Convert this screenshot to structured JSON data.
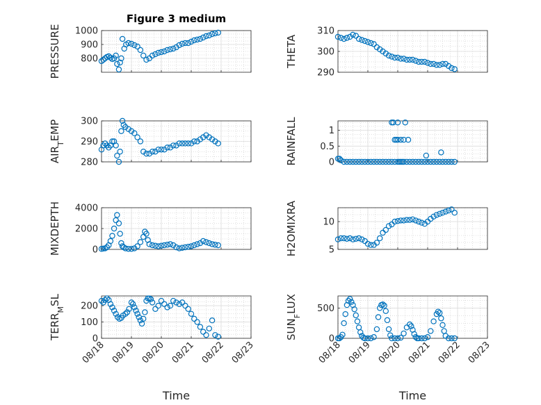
{
  "figure": {
    "marker_color": "#0072BD",
    "axis_color": "#262626",
    "grid_color": "#bfbfbf"
  },
  "chart_data": [
    {
      "type": "scatter",
      "title": "Figure 3 medium",
      "ylabel": "PRESSURE",
      "ylabel_sub": "",
      "ylabel_tail": "",
      "xlabel": "",
      "xlim": [
        0,
        5
      ],
      "ylim": [
        700,
        1000
      ],
      "yticks": [
        800,
        900,
        1000
      ],
      "show_xtick_labels": false,
      "x": [
        0.0,
        0.06,
        0.12,
        0.18,
        0.24,
        0.3,
        0.36,
        0.42,
        0.48,
        0.52,
        0.58,
        0.62,
        0.66,
        0.7,
        0.76,
        0.82,
        0.9,
        1.0,
        1.1,
        1.2,
        1.3,
        1.4,
        1.5,
        1.6,
        1.7,
        1.8,
        1.9,
        2.0,
        2.1,
        2.2,
        2.3,
        2.4,
        2.5,
        2.6,
        2.7,
        2.8,
        2.9,
        3.0,
        3.1,
        3.2,
        3.3,
        3.4,
        3.5,
        3.6,
        3.7,
        3.8,
        3.9
      ],
      "y": [
        780,
        790,
        800,
        810,
        815,
        805,
        795,
        800,
        820,
        760,
        720,
        770,
        800,
        940,
        870,
        900,
        910,
        905,
        895,
        885,
        860,
        820,
        790,
        800,
        820,
        830,
        840,
        845,
        850,
        860,
        865,
        870,
        880,
        895,
        905,
        910,
        910,
        920,
        930,
        935,
        940,
        950,
        960,
        965,
        975,
        980,
        985
      ]
    },
    {
      "type": "scatter",
      "title": "",
      "ylabel": "THETA",
      "ylabel_sub": "",
      "ylabel_tail": "",
      "xlabel": "",
      "xlim": [
        0,
        5
      ],
      "ylim": [
        290,
        310
      ],
      "yticks": [
        290,
        300,
        310
      ],
      "show_xtick_labels": false,
      "x": [
        0.0,
        0.1,
        0.2,
        0.3,
        0.4,
        0.5,
        0.6,
        0.7,
        0.8,
        0.9,
        1.0,
        1.1,
        1.2,
        1.3,
        1.4,
        1.5,
        1.6,
        1.7,
        1.8,
        1.9,
        2.0,
        2.1,
        2.2,
        2.3,
        2.4,
        2.5,
        2.6,
        2.7,
        2.8,
        2.9,
        3.0,
        3.1,
        3.2,
        3.3,
        3.4,
        3.5,
        3.6,
        3.7,
        3.8,
        3.9
      ],
      "y": [
        307,
        306.5,
        306,
        306.5,
        307,
        308,
        307.5,
        306,
        305.5,
        305,
        304.5,
        304,
        303.5,
        302,
        301,
        300,
        299,
        298,
        297.5,
        297,
        297,
        296.5,
        296.5,
        296,
        296,
        296,
        295.5,
        295,
        295,
        295,
        294.5,
        294,
        294,
        293.5,
        293.5,
        294,
        294,
        293,
        292,
        291.5
      ]
    },
    {
      "type": "scatter",
      "title": "",
      "ylabel": "AIR",
      "ylabel_sub": "T",
      "ylabel_tail": "EMP",
      "xlabel": "",
      "xlim": [
        0,
        5
      ],
      "ylim": [
        280,
        300
      ],
      "yticks": [
        280,
        290,
        300
      ],
      "show_xtick_labels": false,
      "x": [
        0.0,
        0.06,
        0.12,
        0.18,
        0.24,
        0.3,
        0.36,
        0.42,
        0.48,
        0.52,
        0.58,
        0.62,
        0.66,
        0.7,
        0.74,
        0.8,
        0.9,
        1.0,
        1.1,
        1.2,
        1.3,
        1.4,
        1.5,
        1.6,
        1.7,
        1.8,
        1.9,
        2.0,
        2.1,
        2.2,
        2.3,
        2.4,
        2.5,
        2.6,
        2.7,
        2.8,
        2.9,
        3.0,
        3.1,
        3.2,
        3.3,
        3.4,
        3.5,
        3.6,
        3.7,
        3.8,
        3.9
      ],
      "y": [
        286,
        288,
        289,
        288,
        287,
        288,
        290,
        290,
        288,
        283,
        280,
        285,
        295,
        300,
        298,
        297,
        296,
        295,
        294,
        292,
        290,
        285,
        284,
        284,
        285,
        285,
        286,
        286,
        286,
        287,
        287,
        288,
        288,
        289,
        289,
        289,
        289,
        289,
        290,
        290,
        291,
        292,
        293,
        292,
        291,
        290,
        289
      ]
    },
    {
      "type": "scatter",
      "title": "",
      "ylabel": "RAINFALL",
      "ylabel_sub": "",
      "ylabel_tail": "",
      "xlabel": "",
      "xlim": [
        0,
        5
      ],
      "ylim": [
        0,
        1.3
      ],
      "yticks": [
        0,
        0.5,
        1
      ],
      "show_xtick_labels": false,
      "x": [
        0.0,
        0.05,
        0.1,
        0.2,
        0.3,
        0.4,
        0.5,
        0.6,
        0.7,
        0.8,
        0.9,
        1.0,
        1.1,
        1.2,
        1.3,
        1.4,
        1.5,
        1.6,
        1.7,
        1.8,
        1.9,
        2.0,
        2.05,
        2.1,
        2.15,
        2.2,
        2.3,
        2.4,
        2.5,
        2.6,
        2.7,
        2.8,
        2.9,
        3.0,
        3.1,
        3.2,
        3.3,
        3.4,
        3.5,
        3.6,
        3.7,
        3.8,
        3.9,
        1.8,
        1.85,
        1.9,
        1.95,
        2.0,
        2.0,
        2.1,
        2.2,
        2.25,
        2.35,
        2.95,
        3.45
      ],
      "y": [
        0.1,
        0.1,
        0.05,
        0,
        0,
        0,
        0,
        0,
        0,
        0,
        0,
        0,
        0,
        0,
        0,
        0,
        0,
        0,
        0,
        0,
        0,
        0,
        0,
        0,
        0,
        0,
        0,
        0,
        0,
        0,
        0,
        0,
        0,
        0,
        0,
        0,
        0,
        0,
        0,
        0,
        0,
        0,
        0,
        1.25,
        1.25,
        0.7,
        0.7,
        0.7,
        1.25,
        0.7,
        0.7,
        1.25,
        0.7,
        0.2,
        0.3
      ]
    },
    {
      "type": "scatter",
      "title": "",
      "ylabel": "MIXDEPTH",
      "ylabel_sub": "",
      "ylabel_tail": "",
      "xlabel": "",
      "xlim": [
        0,
        5
      ],
      "ylim": [
        0,
        4000
      ],
      "yticks": [
        0,
        2000,
        4000
      ],
      "show_xtick_labels": false,
      "x": [
        0.0,
        0.06,
        0.12,
        0.18,
        0.24,
        0.3,
        0.36,
        0.42,
        0.48,
        0.52,
        0.58,
        0.62,
        0.66,
        0.7,
        0.74,
        0.8,
        0.9,
        1.0,
        1.1,
        1.2,
        1.3,
        1.4,
        1.45,
        1.5,
        1.55,
        1.6,
        1.7,
        1.8,
        1.9,
        2.0,
        2.1,
        2.2,
        2.3,
        2.4,
        2.5,
        2.6,
        2.7,
        2.8,
        2.9,
        3.0,
        3.1,
        3.2,
        3.3,
        3.4,
        3.5,
        3.6,
        3.7,
        3.8,
        3.9
      ],
      "y": [
        50,
        80,
        100,
        200,
        400,
        800,
        1300,
        2000,
        2800,
        3300,
        2500,
        1500,
        600,
        300,
        200,
        100,
        50,
        50,
        100,
        300,
        700,
        1200,
        1700,
        1500,
        900,
        500,
        400,
        350,
        300,
        350,
        400,
        450,
        500,
        400,
        200,
        100,
        150,
        200,
        250,
        300,
        400,
        500,
        600,
        800,
        700,
        600,
        500,
        450,
        400
      ]
    },
    {
      "type": "scatter",
      "title": "",
      "ylabel": "H2OMIXRA",
      "ylabel_sub": "",
      "ylabel_tail": "",
      "xlabel": "",
      "xlim": [
        0,
        5
      ],
      "ylim": [
        5,
        12.5
      ],
      "yticks": [
        5,
        10
      ],
      "show_xtick_labels": false,
      "x": [
        0.0,
        0.1,
        0.2,
        0.3,
        0.4,
        0.5,
        0.6,
        0.7,
        0.8,
        0.9,
        1.0,
        1.1,
        1.2,
        1.3,
        1.4,
        1.5,
        1.6,
        1.7,
        1.8,
        1.9,
        2.0,
        2.1,
        2.2,
        2.3,
        2.4,
        2.5,
        2.6,
        2.7,
        2.8,
        2.9,
        3.0,
        3.1,
        3.2,
        3.3,
        3.4,
        3.5,
        3.6,
        3.7,
        3.8,
        3.9
      ],
      "y": [
        6.8,
        7,
        7,
        6.9,
        7,
        6.8,
        6.9,
        7,
        6.8,
        6.5,
        6,
        5.8,
        5.8,
        6.2,
        7,
        8,
        8.5,
        9.2,
        9.5,
        10,
        10.1,
        10.2,
        10.2,
        10.3,
        10.3,
        10.4,
        10.2,
        10,
        9.8,
        9.6,
        10,
        10.5,
        10.9,
        11.2,
        11.4,
        11.6,
        11.8,
        12,
        12.2,
        11.6
      ]
    },
    {
      "type": "scatter",
      "title": "",
      "ylabel": "TERR",
      "ylabel_sub": "M",
      "ylabel_tail": "SL",
      "xlabel": "Time",
      "xlim": [
        0,
        5
      ],
      "ylim": [
        0,
        260
      ],
      "yticks": [
        0,
        100,
        200
      ],
      "show_xtick_labels": true,
      "xticks": [
        0,
        1,
        2,
        3,
        4,
        5
      ],
      "xticklabels": [
        "08/18",
        "08/19",
        "08/20",
        "08/21",
        "08/22",
        "08/23"
      ],
      "x": [
        0.0,
        0.06,
        0.12,
        0.18,
        0.24,
        0.3,
        0.36,
        0.42,
        0.48,
        0.54,
        0.6,
        0.66,
        0.72,
        0.8,
        0.86,
        0.92,
        1.0,
        1.05,
        1.1,
        1.15,
        1.2,
        1.25,
        1.3,
        1.35,
        1.4,
        1.45,
        1.5,
        1.55,
        1.6,
        1.65,
        1.7,
        1.8,
        1.9,
        2.0,
        2.1,
        2.2,
        2.3,
        2.4,
        2.5,
        2.6,
        2.7,
        2.8,
        2.9,
        3.0,
        3.1,
        3.2,
        3.3,
        3.4,
        3.5,
        3.6,
        3.7,
        3.8,
        3.9
      ],
      "y": [
        230,
        220,
        235,
        245,
        235,
        210,
        190,
        170,
        150,
        130,
        120,
        125,
        140,
        150,
        160,
        180,
        220,
        210,
        190,
        170,
        150,
        130,
        110,
        90,
        120,
        160,
        230,
        245,
        245,
        240,
        220,
        180,
        200,
        230,
        210,
        190,
        200,
        230,
        220,
        210,
        220,
        200,
        180,
        150,
        120,
        100,
        70,
        40,
        20,
        60,
        110,
        20,
        10
      ]
    },
    {
      "type": "scatter",
      "title": "",
      "ylabel": "SUN",
      "ylabel_sub": "F",
      "ylabel_tail": "LUX",
      "xlabel": "Time",
      "xlim": [
        0,
        5
      ],
      "ylim": [
        0,
        700
      ],
      "yticks": [
        0,
        500
      ],
      "show_xtick_labels": true,
      "xticks": [
        0,
        1,
        2,
        3,
        4,
        5
      ],
      "xticklabels": [
        "08/18",
        "08/19",
        "08/20",
        "08/21",
        "08/22",
        "08/23"
      ],
      "x": [
        0.0,
        0.05,
        0.1,
        0.15,
        0.2,
        0.25,
        0.3,
        0.35,
        0.4,
        0.45,
        0.5,
        0.55,
        0.6,
        0.65,
        0.7,
        0.75,
        0.8,
        0.85,
        0.9,
        1.0,
        1.1,
        1.2,
        1.3,
        1.35,
        1.4,
        1.45,
        1.5,
        1.55,
        1.6,
        1.65,
        1.7,
        1.75,
        1.8,
        1.9,
        2.0,
        2.1,
        2.2,
        2.3,
        2.4,
        2.45,
        2.5,
        2.55,
        2.6,
        2.65,
        2.7,
        2.8,
        2.9,
        3.0,
        3.1,
        3.2,
        3.3,
        3.35,
        3.4,
        3.45,
        3.5,
        3.55,
        3.6,
        3.7,
        3.8,
        3.9
      ],
      "y": [
        0,
        0,
        20,
        60,
        250,
        400,
        550,
        620,
        650,
        600,
        550,
        480,
        380,
        280,
        180,
        100,
        40,
        10,
        0,
        0,
        0,
        20,
        150,
        350,
        500,
        550,
        560,
        540,
        450,
        300,
        150,
        50,
        0,
        0,
        0,
        10,
        80,
        180,
        230,
        200,
        140,
        70,
        20,
        0,
        0,
        0,
        0,
        20,
        120,
        280,
        400,
        440,
        420,
        330,
        220,
        120,
        40,
        0,
        0,
        0
      ]
    }
  ]
}
